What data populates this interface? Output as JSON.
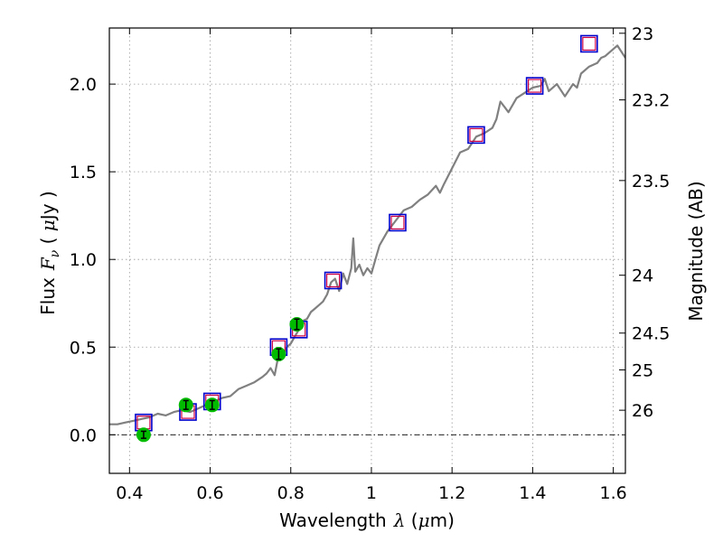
{
  "chart_data": {
    "type": "line",
    "title": "",
    "xlabel_text": "Wavelength",
    "xlabel_symbol": "λ",
    "xlabel_unit_open": " (",
    "xlabel_unit_mu": "μ",
    "xlabel_unit_rest": "m)",
    "ylabel_text": "Flux",
    "ylabel_symbol": "F",
    "ylabel_subscript": "ν",
    "ylabel_unit_open": " ( ",
    "ylabel_unit_mu": "μ",
    "ylabel_unit_rest": "Jy )",
    "y2label": "Magnitude (AB)",
    "xlim": [
      0.35,
      1.63
    ],
    "ylim": [
      -0.22,
      2.32
    ],
    "grid": true,
    "x_ticks": [
      0.4,
      0.6,
      0.8,
      1.0,
      1.2,
      1.4,
      1.6
    ],
    "x_tick_labels": [
      "0.4",
      "0.6",
      "0.8",
      "1",
      "1.2",
      "1.4",
      "1.6"
    ],
    "y_ticks": [
      0.0,
      0.5,
      1.0,
      1.5,
      2.0
    ],
    "y_tick_labels": [
      "0.0",
      "0.5",
      "1.0",
      "1.5",
      "2.0"
    ],
    "y2_ticks": [
      {
        "label": "23",
        "flux": 2.29
      },
      {
        "label": "23.2",
        "flux": 1.91
      },
      {
        "label": "23.5",
        "flux": 1.45
      },
      {
        "label": "24",
        "flux": 0.91
      },
      {
        "label": "24.5",
        "flux": 0.58
      },
      {
        "label": "25",
        "flux": 0.37
      },
      {
        "label": "26",
        "flux": 0.14
      }
    ],
    "zero_line": 0.0,
    "colors": {
      "spectrum": "#808080",
      "model_box": "#0000cc",
      "model_box_inner": "#cc0044",
      "observed": "#00bb00",
      "errorbar": "#000000",
      "grid": "#999999"
    },
    "series": [
      {
        "kind": "spectrum",
        "x": [
          0.35,
          0.37,
          0.39,
          0.41,
          0.43,
          0.45,
          0.47,
          0.49,
          0.51,
          0.53,
          0.55,
          0.57,
          0.59,
          0.61,
          0.63,
          0.65,
          0.67,
          0.69,
          0.71,
          0.73,
          0.74,
          0.75,
          0.76,
          0.77,
          0.78,
          0.79,
          0.8,
          0.81,
          0.82,
          0.83,
          0.84,
          0.85,
          0.86,
          0.87,
          0.88,
          0.89,
          0.9,
          0.91,
          0.92,
          0.93,
          0.94,
          0.95,
          0.955,
          0.96,
          0.97,
          0.98,
          0.99,
          1.0,
          1.01,
          1.02,
          1.04,
          1.06,
          1.08,
          1.1,
          1.12,
          1.14,
          1.16,
          1.17,
          1.18,
          1.2,
          1.22,
          1.24,
          1.26,
          1.28,
          1.3,
          1.31,
          1.32,
          1.33,
          1.34,
          1.36,
          1.38,
          1.4,
          1.42,
          1.43,
          1.44,
          1.46,
          1.48,
          1.5,
          1.51,
          1.52,
          1.54,
          1.56,
          1.57,
          1.58,
          1.6,
          1.61,
          1.63
        ],
        "y": [
          0.06,
          0.06,
          0.07,
          0.08,
          0.09,
          0.1,
          0.12,
          0.11,
          0.13,
          0.14,
          0.13,
          0.15,
          0.17,
          0.19,
          0.21,
          0.22,
          0.26,
          0.28,
          0.3,
          0.33,
          0.35,
          0.38,
          0.34,
          0.46,
          0.44,
          0.5,
          0.52,
          0.56,
          0.6,
          0.65,
          0.66,
          0.7,
          0.72,
          0.74,
          0.76,
          0.8,
          0.87,
          0.89,
          0.82,
          0.92,
          0.86,
          0.95,
          1.12,
          0.93,
          0.97,
          0.91,
          0.95,
          0.92,
          1.0,
          1.08,
          1.16,
          1.22,
          1.28,
          1.3,
          1.34,
          1.37,
          1.42,
          1.38,
          1.43,
          1.52,
          1.61,
          1.63,
          1.7,
          1.72,
          1.75,
          1.8,
          1.9,
          1.87,
          1.84,
          1.92,
          1.95,
          1.98,
          1.99,
          2.03,
          1.96,
          2.0,
          1.93,
          2.0,
          1.98,
          2.06,
          2.1,
          2.12,
          2.15,
          2.16,
          2.2,
          2.22,
          2.15
        ]
      },
      {
        "kind": "model_boxes",
        "x": [
          0.435,
          0.545,
          0.605,
          0.77,
          0.82,
          0.905,
          1.065,
          1.26,
          1.405,
          1.54
        ],
        "y": [
          0.07,
          0.13,
          0.19,
          0.5,
          0.6,
          0.88,
          1.21,
          1.71,
          1.99,
          2.23
        ]
      },
      {
        "kind": "observed",
        "x": [
          0.435,
          0.54,
          0.605,
          0.77,
          0.815
        ],
        "y": [
          0.0,
          0.17,
          0.17,
          0.46,
          0.63
        ],
        "yerr": [
          0.02,
          0.025,
          0.025,
          0.03,
          0.03
        ]
      }
    ]
  }
}
